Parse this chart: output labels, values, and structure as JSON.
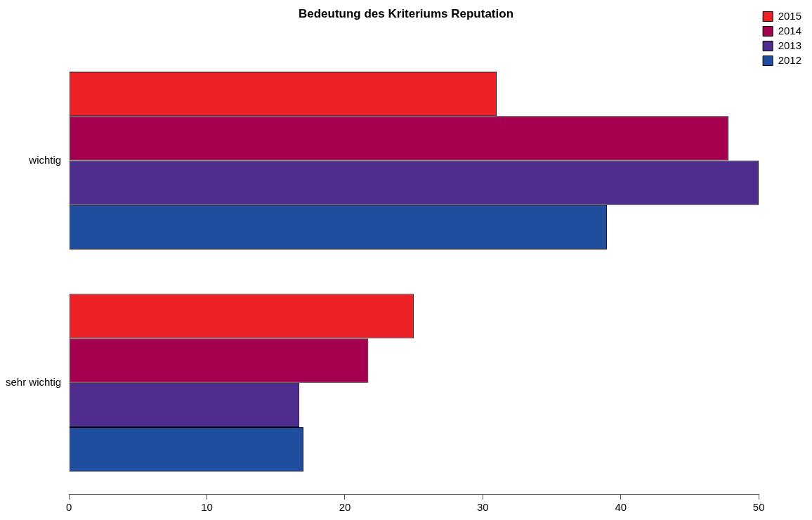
{
  "chart_data": {
    "type": "bar",
    "orientation": "horizontal",
    "title": "Bedeutung des Kriteriums Reputation",
    "categories": [
      "wichtig",
      "sehr wichtig"
    ],
    "series": [
      {
        "name": "2015",
        "color": "#ec2227",
        "values": [
          31,
          25
        ]
      },
      {
        "name": "2014",
        "color": "#a50050",
        "values": [
          47.8,
          21.7
        ]
      },
      {
        "name": "2013",
        "color": "#4e2d8f",
        "values": [
          50,
          16.7
        ]
      },
      {
        "name": "2012",
        "color": "#1f4e9f",
        "values": [
          39,
          17
        ]
      }
    ],
    "xlim": [
      0,
      50
    ],
    "xticks": [
      0,
      10,
      20,
      30,
      40,
      50
    ],
    "grid": false,
    "legend": "top right"
  }
}
